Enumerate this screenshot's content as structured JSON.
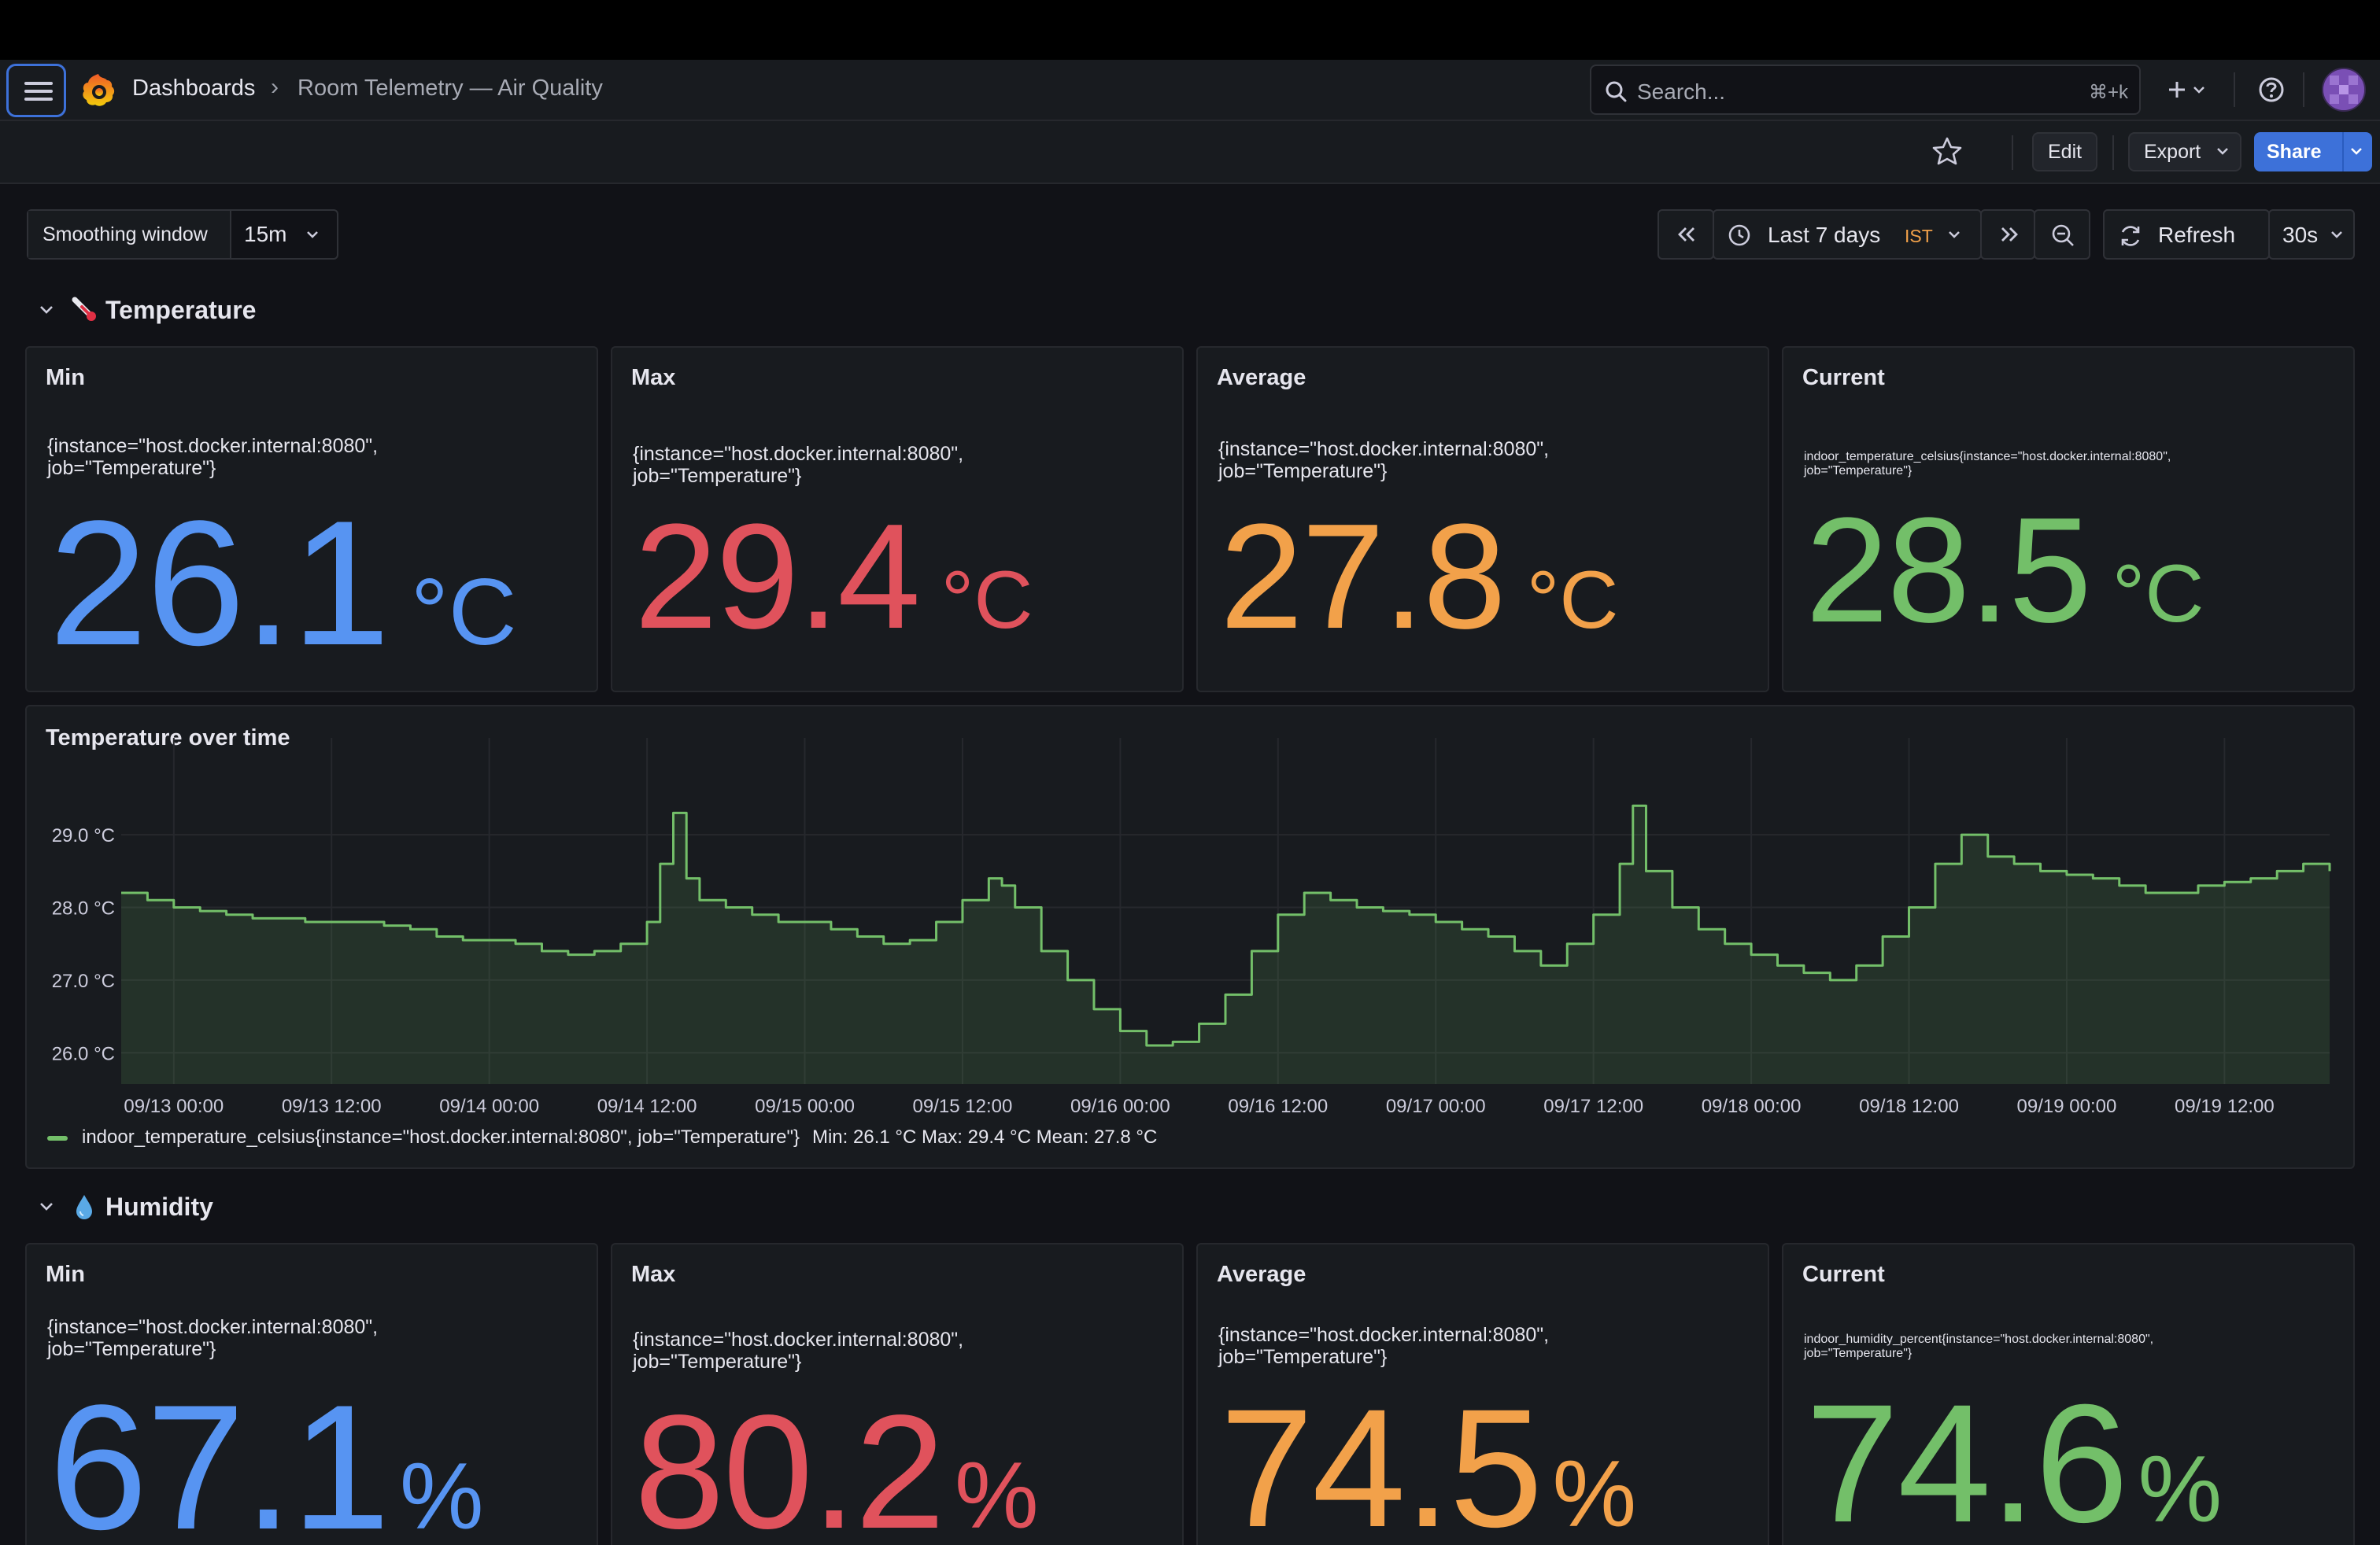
{
  "header": {
    "breadcrumb": [
      "Dashboards",
      "Room Telemetry — Air Quality"
    ],
    "breadcrumb_sep": "›",
    "search_placeholder": "Search...",
    "search_shortcut": "⌘+k"
  },
  "toolbar": {
    "edit_label": "Edit",
    "export_label": "Export",
    "share_label": "Share"
  },
  "variables": [
    {
      "label": "Smoothing window",
      "value": "15m"
    }
  ],
  "time_controls": {
    "range": "Last 7 days",
    "timezone": "IST",
    "refresh_label": "Refresh",
    "refresh_interval": "30s"
  },
  "colors": {
    "min": "#5794f2",
    "max": "#e0525c",
    "avg": "#f2a14a",
    "current": "#73bf69"
  },
  "rows": [
    {
      "title": "Temperature",
      "icon": "thermometer-icon",
      "stats": [
        {
          "title": "Min",
          "series": "{instance=\"host.docker.internal:8080\", job=\"Temperature\"}",
          "value": "26.1",
          "unit": "°C"
        },
        {
          "title": "Max",
          "series": "{instance=\"host.docker.internal:8080\", job=\"Temperature\"}",
          "value": "29.4",
          "unit": "°C"
        },
        {
          "title": "Average",
          "series": "{instance=\"host.docker.internal:8080\", job=\"Temperature\"}",
          "value": "27.8",
          "unit": "°C"
        },
        {
          "title": "Current",
          "series": "indoor_temperature_celsius{instance=\"host.docker.internal:8080\", job=\"Temperature\"}",
          "value": "28.5",
          "unit": "°C"
        }
      ]
    },
    {
      "title": "Humidity",
      "icon": "droplet-icon",
      "stats": [
        {
          "title": "Min",
          "series": "{instance=\"host.docker.internal:8080\", job=\"Temperature\"}",
          "value": "67.1",
          "unit": "%"
        },
        {
          "title": "Max",
          "series": "{instance=\"host.docker.internal:8080\", job=\"Temperature\"}",
          "value": "80.2",
          "unit": "%"
        },
        {
          "title": "Average",
          "series": "{instance=\"host.docker.internal:8080\", job=\"Temperature\"}",
          "value": "74.5",
          "unit": "%"
        },
        {
          "title": "Current",
          "series": "indoor_humidity_percent{instance=\"host.docker.internal:8080\", job=\"Temperature\"}",
          "value": "74.6",
          "unit": "%"
        }
      ]
    }
  ],
  "chart_data": {
    "type": "area",
    "title": "Temperature over time",
    "x_ticks": [
      "09/13 00:00",
      "09/13 12:00",
      "09/14 00:00",
      "09/14 12:00",
      "09/15 00:00",
      "09/15 12:00",
      "09/16 00:00",
      "09/16 12:00",
      "09/17 00:00",
      "09/17 12:00",
      "09/18 00:00",
      "09/18 12:00",
      "09/19 00:00",
      "09/19 12:00"
    ],
    "y_ticks": [
      "26.0 °C",
      "27.0 °C",
      "28.0 °C",
      "29.0 °C"
    ],
    "x_range": [
      "09/12 20:00",
      "09/19 20:00"
    ],
    "ylim": [
      25.7,
      29.9
    ],
    "grid": true,
    "series": [
      {
        "name": "indoor_temperature_celsius{instance=\"host.docker.internal:8080\", job=\"Temperature\"}",
        "legend_stats": "Min: 26.1 °C   Max: 29.4 °C   Mean: 27.8 °C",
        "color": "#73bf69",
        "x": [
          "09/12 20:00",
          "09/12 22:00",
          "09/13 00:00",
          "09/13 02:00",
          "09/13 04:00",
          "09/13 06:00",
          "09/13 08:00",
          "09/13 10:00",
          "09/13 12:00",
          "09/13 14:00",
          "09/13 16:00",
          "09/13 18:00",
          "09/13 20:00",
          "09/13 22:00",
          "09/14 00:00",
          "09/14 02:00",
          "09/14 04:00",
          "09/14 06:00",
          "09/14 08:00",
          "09/14 10:00",
          "09/14 12:00",
          "09/14 13:00",
          "09/14 14:00",
          "09/14 15:00",
          "09/14 16:00",
          "09/14 18:00",
          "09/14 20:00",
          "09/14 22:00",
          "09/15 00:00",
          "09/15 02:00",
          "09/15 04:00",
          "09/15 06:00",
          "09/15 08:00",
          "09/15 10:00",
          "09/15 12:00",
          "09/15 14:00",
          "09/15 15:00",
          "09/15 16:00",
          "09/15 18:00",
          "09/15 20:00",
          "09/15 22:00",
          "09/16 00:00",
          "09/16 02:00",
          "09/16 04:00",
          "09/16 06:00",
          "09/16 08:00",
          "09/16 10:00",
          "09/16 12:00",
          "09/16 14:00",
          "09/16 16:00",
          "09/16 18:00",
          "09/16 20:00",
          "09/16 22:00",
          "09/17 00:00",
          "09/17 02:00",
          "09/17 04:00",
          "09/17 06:00",
          "09/17 08:00",
          "09/17 10:00",
          "09/17 12:00",
          "09/17 14:00",
          "09/17 15:00",
          "09/17 16:00",
          "09/17 18:00",
          "09/17 20:00",
          "09/17 22:00",
          "09/18 00:00",
          "09/18 02:00",
          "09/18 04:00",
          "09/18 06:00",
          "09/18 08:00",
          "09/18 10:00",
          "09/18 12:00",
          "09/18 14:00",
          "09/18 16:00",
          "09/18 18:00",
          "09/18 20:00",
          "09/18 22:00",
          "09/19 00:00",
          "09/19 02:00",
          "09/19 04:00",
          "09/19 06:00",
          "09/19 08:00",
          "09/19 10:00",
          "09/19 12:00",
          "09/19 14:00",
          "09/19 16:00",
          "09/19 18:00",
          "09/19 20:00"
        ],
        "y": [
          28.2,
          28.1,
          28.0,
          27.95,
          27.9,
          27.85,
          27.85,
          27.8,
          27.8,
          27.8,
          27.75,
          27.7,
          27.6,
          27.55,
          27.55,
          27.5,
          27.4,
          27.35,
          27.4,
          27.5,
          27.8,
          28.6,
          29.3,
          28.4,
          28.1,
          28.0,
          27.9,
          27.8,
          27.8,
          27.7,
          27.6,
          27.5,
          27.55,
          27.8,
          28.1,
          28.4,
          28.3,
          28.0,
          27.4,
          27.0,
          26.6,
          26.3,
          26.1,
          26.15,
          26.4,
          26.8,
          27.4,
          27.9,
          28.2,
          28.1,
          28.0,
          27.95,
          27.9,
          27.8,
          27.7,
          27.6,
          27.4,
          27.2,
          27.5,
          27.9,
          28.6,
          29.4,
          28.5,
          28.0,
          27.7,
          27.5,
          27.35,
          27.2,
          27.1,
          27.0,
          27.2,
          27.6,
          28.0,
          28.6,
          29.0,
          28.7,
          28.6,
          28.5,
          28.45,
          28.4,
          28.3,
          28.2,
          28.2,
          28.3,
          28.35,
          28.4,
          28.5,
          28.6,
          28.5
        ]
      }
    ]
  }
}
